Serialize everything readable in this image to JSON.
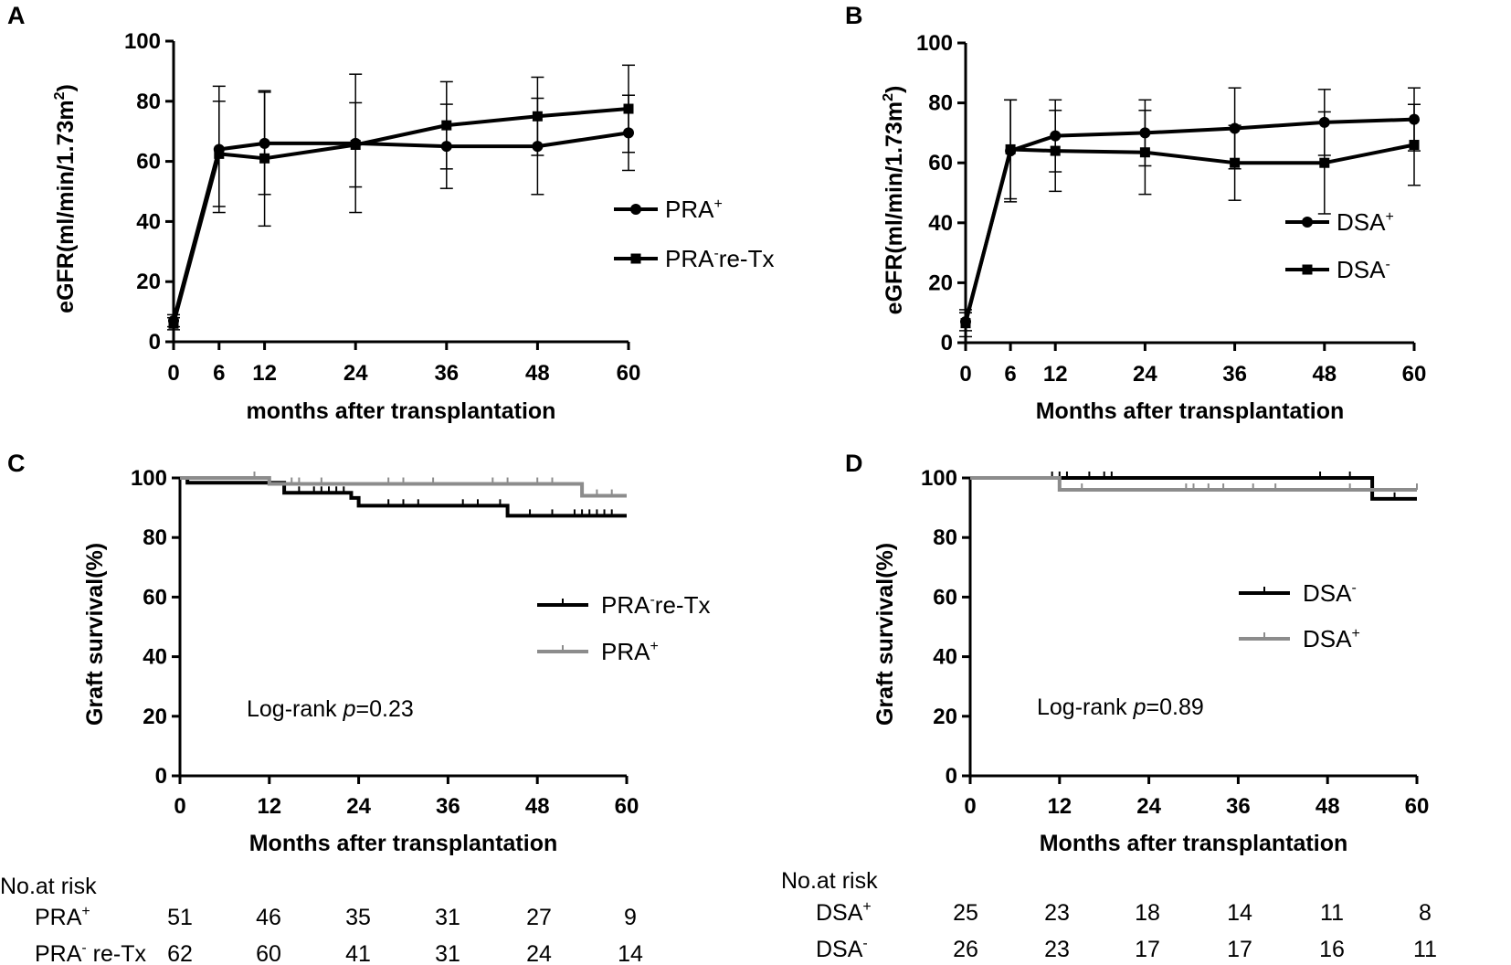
{
  "chart_data": [
    {
      "panel": "A",
      "type": "line",
      "xlabel": "months after transplantation",
      "ylabel_main": "eGFR(ml/min/1.73m",
      "ylabel_sup": "2",
      "ylabel_end": ")",
      "x_ticks": [
        0,
        6,
        12,
        24,
        36,
        48,
        60
      ],
      "y_ticks": [
        0,
        20,
        40,
        60,
        80,
        100
      ],
      "xlim": [
        0,
        60
      ],
      "ylim": [
        0,
        100
      ],
      "series": [
        {
          "name": "PRA",
          "sup": "+",
          "suffix": "",
          "marker": "circle",
          "x": [
            0,
            6,
            12,
            24,
            36,
            48,
            60
          ],
          "y": [
            7,
            64,
            66,
            66,
            65,
            65,
            69.5
          ],
          "err": [
            2,
            21,
            17,
            23,
            14,
            16,
            12.5
          ]
        },
        {
          "name": "PRA",
          "sup": "-",
          "suffix": "re-Tx",
          "marker": "square",
          "x": [
            0,
            6,
            12,
            24,
            36,
            48,
            60
          ],
          "y": [
            6,
            62.5,
            61,
            65.5,
            72,
            75,
            77.5
          ],
          "err": [
            2,
            17.5,
            22.5,
            14,
            14.5,
            13,
            14.5
          ]
        }
      ]
    },
    {
      "panel": "B",
      "type": "line",
      "xlabel": "Months after transplantation",
      "ylabel_main": "eGFR(ml/min/1.73m",
      "ylabel_sup": "2",
      "ylabel_end": ")",
      "x_ticks": [
        0,
        6,
        12,
        24,
        36,
        48,
        60
      ],
      "y_ticks": [
        0,
        20,
        40,
        60,
        80,
        100
      ],
      "xlim": [
        0,
        60
      ],
      "ylim": [
        0,
        100
      ],
      "series": [
        {
          "name": "DSA",
          "sup": "+",
          "suffix": "",
          "marker": "circle",
          "x": [
            0,
            6,
            12,
            24,
            36,
            48,
            60
          ],
          "y": [
            7,
            64,
            69,
            70,
            71.5,
            73.5,
            74.5
          ],
          "err": [
            3,
            17,
            12,
            11,
            13.5,
            11,
            10.5
          ]
        },
        {
          "name": "DSA",
          "sup": "-",
          "suffix": "",
          "marker": "square",
          "x": [
            0,
            6,
            12,
            24,
            36,
            48,
            60
          ],
          "y": [
            6.5,
            64.5,
            64,
            63.5,
            60,
            60,
            66
          ],
          "err": [
            4.5,
            16.5,
            13.5,
            14,
            12.5,
            17,
            13.5
          ]
        }
      ]
    },
    {
      "panel": "C",
      "type": "step",
      "xlabel": "Months after transplantation",
      "ylabel": "Graft survival(%)",
      "x_ticks": [
        0,
        12,
        24,
        36,
        48,
        60
      ],
      "y_ticks": [
        0,
        20,
        40,
        60,
        80,
        100
      ],
      "xlim": [
        0,
        60
      ],
      "ylim": [
        0,
        100
      ],
      "annotation": {
        "prefix": "Log-rank ",
        "p": "p",
        "value": "=0.23"
      },
      "series": [
        {
          "name": "PRA",
          "sup": "-",
          "suffix": "re-Tx",
          "color": "#000000",
          "steps": [
            [
              0,
              100
            ],
            [
              1,
              98.4
            ],
            [
              14,
              95
            ],
            [
              23,
              93.3
            ],
            [
              24,
              90.7
            ],
            [
              44,
              87.3
            ],
            [
              60,
              87.3
            ]
          ],
          "censors": [
            [
              16,
              95
            ],
            [
              18,
              95
            ],
            [
              19,
              95
            ],
            [
              20,
              95
            ],
            [
              21,
              95
            ],
            [
              22,
              95
            ],
            [
              28,
              90.7
            ],
            [
              30,
              90.7
            ],
            [
              32,
              90.7
            ],
            [
              38,
              90.7
            ],
            [
              40,
              90.7
            ],
            [
              43,
              90.7
            ],
            [
              47,
              87.3
            ],
            [
              50,
              87.3
            ],
            [
              53,
              87.3
            ],
            [
              54,
              87.3
            ],
            [
              55,
              87.3
            ],
            [
              56,
              87.3
            ],
            [
              57,
              87.3
            ],
            [
              58,
              87.3
            ]
          ]
        },
        {
          "name": "PRA",
          "sup": "+",
          "suffix": "",
          "color": "#8c8c8c",
          "steps": [
            [
              0,
              100
            ],
            [
              12,
              98
            ],
            [
              54,
              94
            ],
            [
              60,
              94
            ]
          ],
          "censors": [
            [
              10,
              100
            ],
            [
              15,
              98
            ],
            [
              16,
              98
            ],
            [
              19,
              98
            ],
            [
              28,
              98
            ],
            [
              30,
              98
            ],
            [
              34,
              98
            ],
            [
              42,
              98
            ],
            [
              44,
              98
            ],
            [
              48,
              98
            ],
            [
              50,
              98
            ],
            [
              56,
              94
            ],
            [
              58,
              94
            ]
          ]
        }
      ],
      "risk_table": {
        "header": "No.at risk",
        "times": [
          0,
          12,
          24,
          36,
          48,
          60
        ],
        "rows": [
          {
            "label": "PRA",
            "sup": "+",
            "suffix": "",
            "values": [
              "51",
              "46",
              "35",
              "31",
              "27",
              "9"
            ]
          },
          {
            "label": "PRA",
            "sup": "-",
            "suffix": " re-Tx",
            "values": [
              "62",
              "60",
              "41",
              "31",
              "24",
              "14"
            ]
          }
        ]
      }
    },
    {
      "panel": "D",
      "type": "step",
      "xlabel": "Months after transplantation",
      "ylabel": "Graft survival(%)",
      "x_ticks": [
        0,
        12,
        24,
        36,
        48,
        60
      ],
      "y_ticks": [
        0,
        20,
        40,
        60,
        80,
        100
      ],
      "xlim": [
        0,
        60
      ],
      "ylim": [
        0,
        100
      ],
      "annotation": {
        "prefix": "Log-rank ",
        "p": "p",
        "value": "=0.89"
      },
      "series": [
        {
          "name": "DSA",
          "sup": "-",
          "suffix": "",
          "color": "#000000",
          "steps": [
            [
              0,
              100
            ],
            [
              54,
              93
            ],
            [
              60,
              93
            ]
          ],
          "censors": [
            [
              11,
              100
            ],
            [
              12,
              100
            ],
            [
              13,
              100
            ],
            [
              16,
              100
            ],
            [
              18,
              100
            ],
            [
              19,
              100
            ],
            [
              47,
              100
            ],
            [
              51,
              100
            ],
            [
              57,
              93
            ]
          ]
        },
        {
          "name": "DSA",
          "sup": "+",
          "suffix": "",
          "color": "#8c8c8c",
          "steps": [
            [
              0,
              100
            ],
            [
              12,
              96
            ],
            [
              60,
              96
            ]
          ],
          "censors": [
            [
              15,
              96
            ],
            [
              29,
              96
            ],
            [
              30,
              96
            ],
            [
              32,
              96
            ],
            [
              34,
              96
            ],
            [
              38,
              96
            ],
            [
              41,
              96
            ],
            [
              51,
              96
            ],
            [
              60,
              96
            ]
          ]
        }
      ],
      "risk_table": {
        "header": "No.at risk",
        "times": [
          0,
          12,
          24,
          36,
          48,
          60
        ],
        "rows": [
          {
            "label": "DSA",
            "sup": "+",
            "suffix": "",
            "values": [
              "25",
              "23",
              "18",
              "14",
              "11",
              "8"
            ]
          },
          {
            "label": "DSA",
            "sup": "-",
            "suffix": "",
            "values": [
              "26",
              "23",
              "17",
              "17",
              "16",
              "11"
            ]
          }
        ]
      }
    }
  ]
}
